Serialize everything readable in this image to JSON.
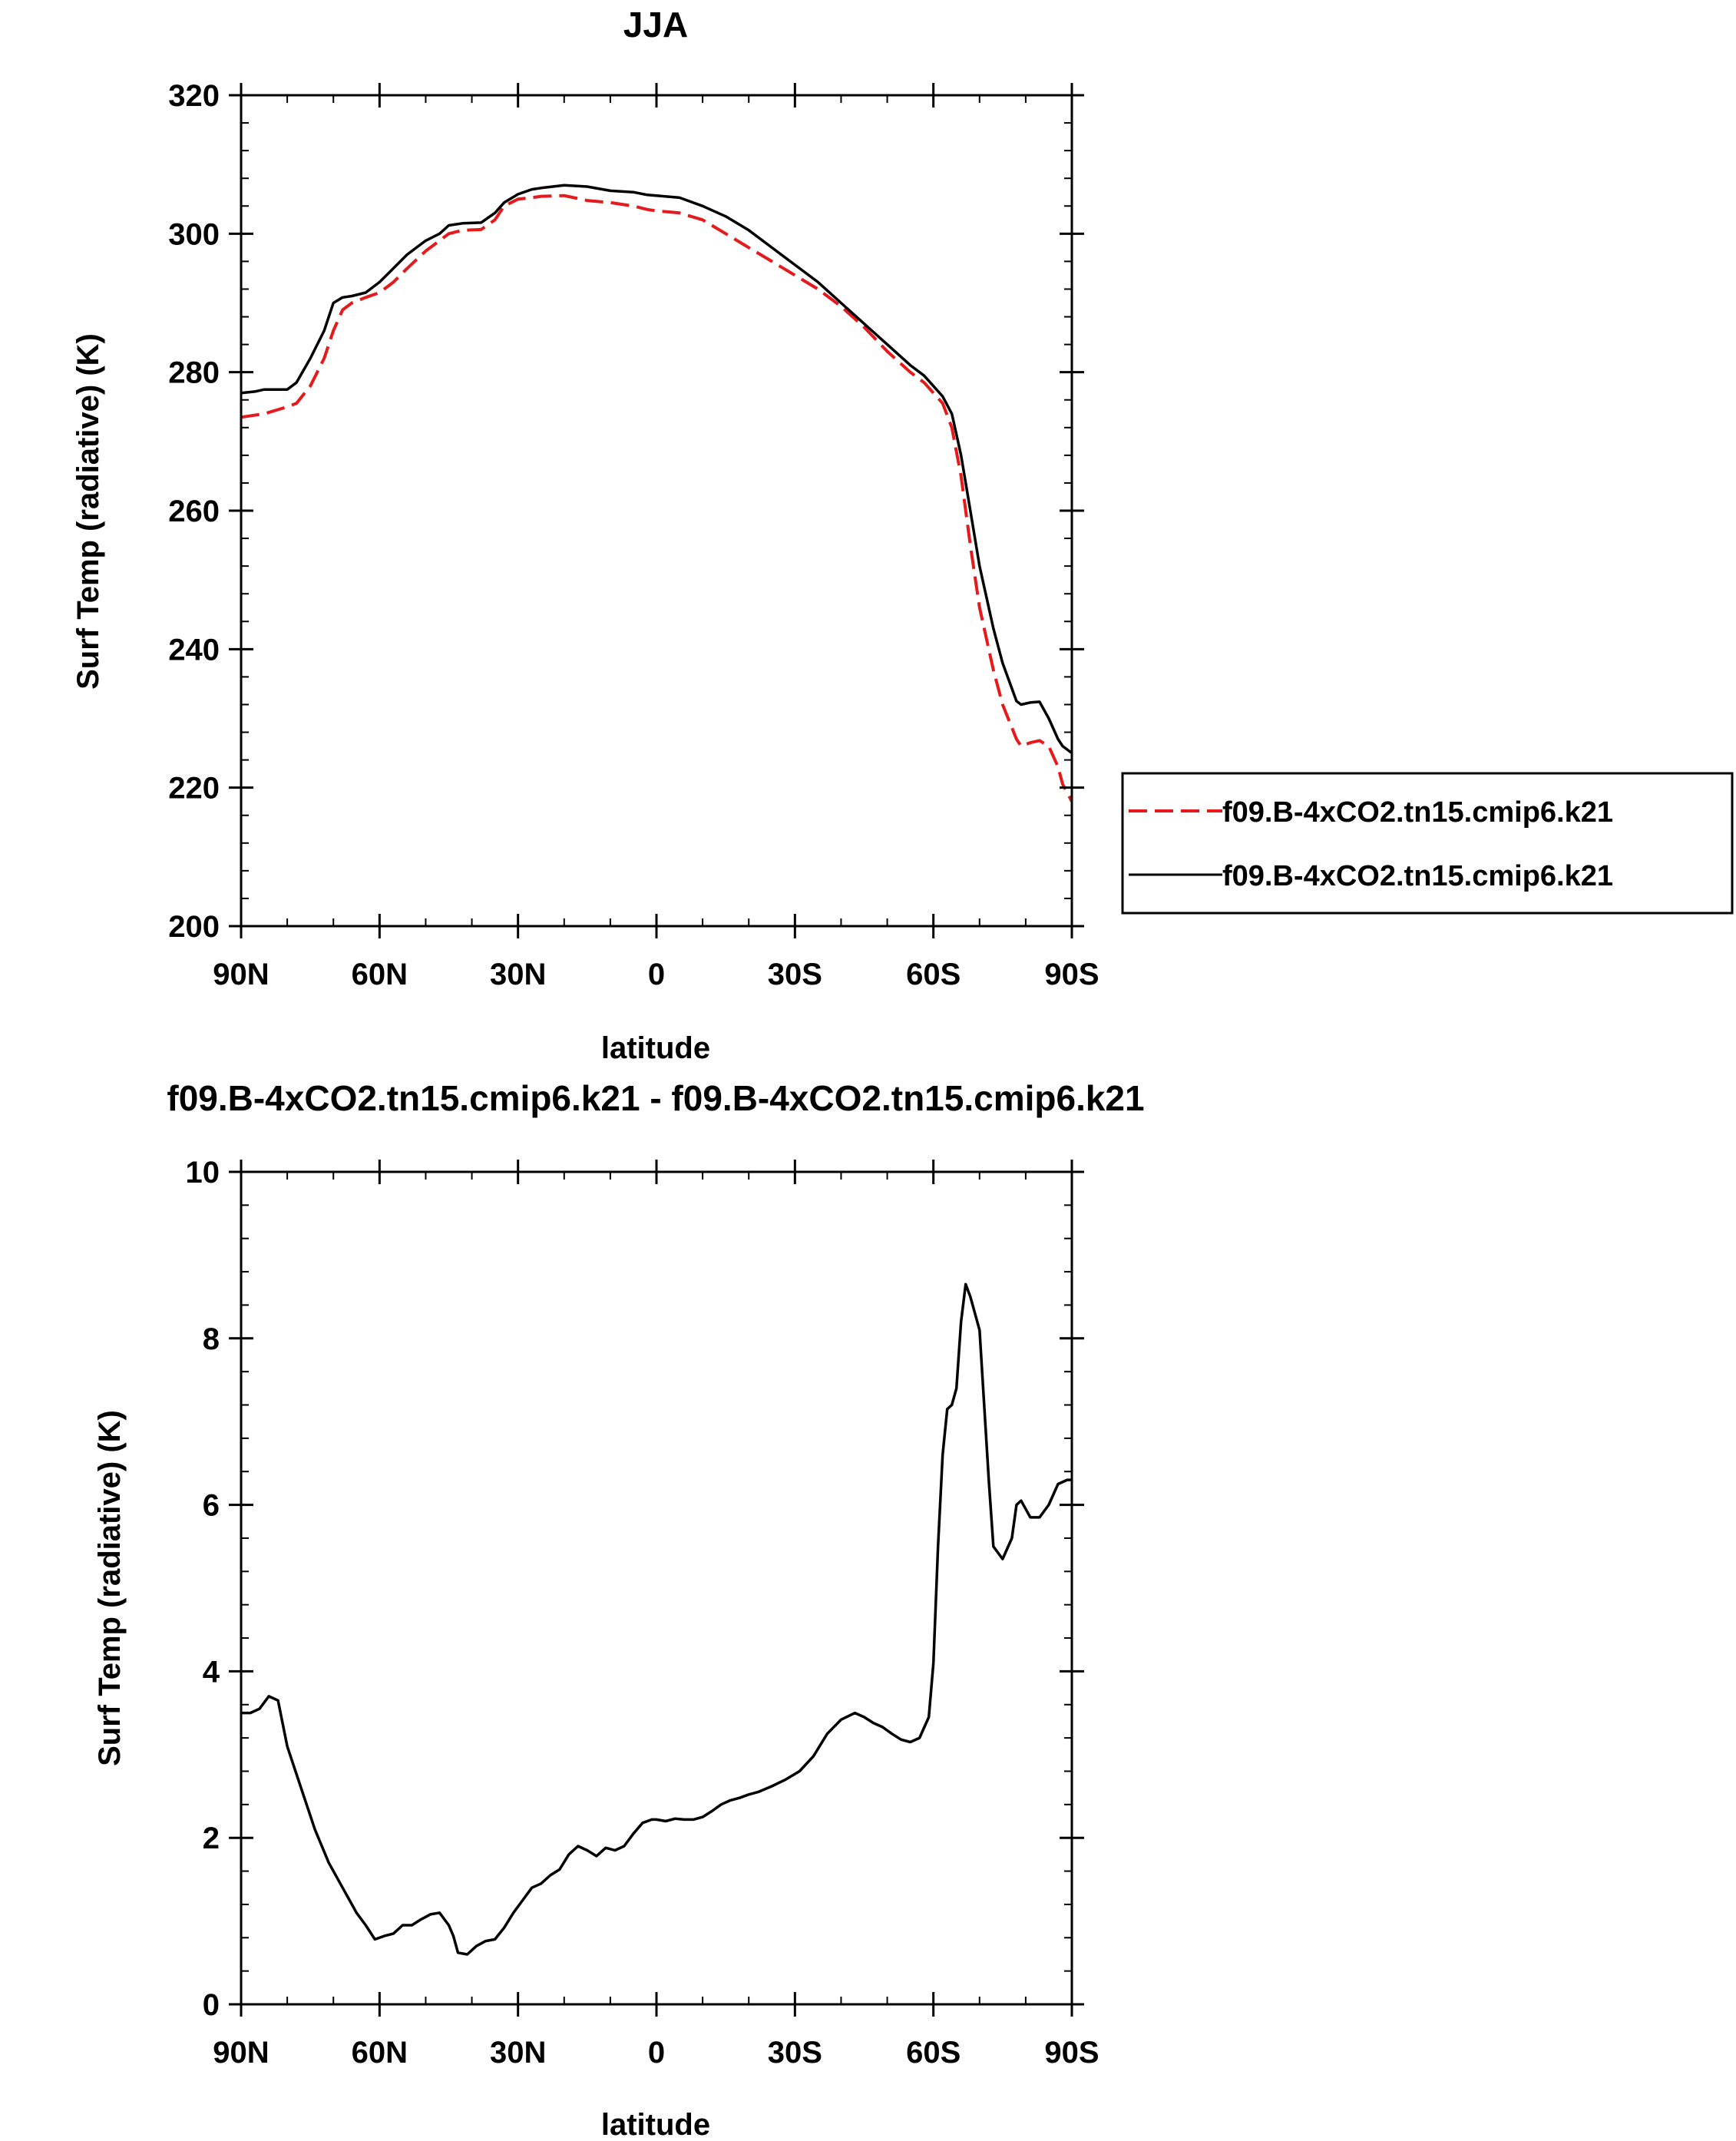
{
  "chart_data": [
    {
      "type": "line",
      "title": "JJA",
      "xlabel": "latitude",
      "ylabel": "Surf Temp (radiative) (K)",
      "xlim": [
        90,
        -90
      ],
      "ylim": [
        200,
        320
      ],
      "xticks": [
        90,
        60,
        30,
        0,
        -30,
        -60,
        -90
      ],
      "xtick_labels": [
        "90N",
        "60N",
        "30N",
        "0",
        "30S",
        "60S",
        "90S"
      ],
      "yticks": [
        200,
        220,
        240,
        260,
        280,
        300,
        320
      ],
      "ytick_labels": [
        "200",
        "220",
        "240",
        "260",
        "280",
        "300",
        "320"
      ],
      "legend_position": "right",
      "series": [
        {
          "name": "f09.B-4xCO2.tn15.cmip6.k21",
          "style": "dashed",
          "color": "#e41a1c",
          "x": [
            90,
            85,
            80,
            78,
            75,
            72,
            70,
            68,
            66,
            63,
            60,
            57,
            54,
            50,
            47,
            45,
            42,
            38,
            35,
            33,
            30,
            27,
            25,
            20,
            15,
            10,
            5,
            2,
            0,
            -5,
            -10,
            -15,
            -20,
            -25,
            -30,
            -35,
            -40,
            -45,
            -50,
            -55,
            -58,
            -60,
            -62,
            -64,
            -66,
            -68,
            -70,
            -73,
            -75,
            -78,
            -79,
            -81,
            -83,
            -85,
            -87,
            -88,
            -90
          ],
          "y": [
            273.5,
            274,
            275,
            275.5,
            278,
            282,
            286,
            289,
            290,
            290.8,
            291.5,
            293,
            295,
            297.5,
            299,
            300,
            300.5,
            300.6,
            302,
            304,
            305,
            305.2,
            305.4,
            305.5,
            304.8,
            304.5,
            304,
            303.5,
            303.3,
            303,
            302,
            300,
            298,
            296,
            294,
            292,
            289.5,
            286.5,
            283,
            280,
            278.5,
            277,
            275.5,
            272,
            265,
            255,
            246,
            237,
            232,
            227,
            226,
            226.5,
            226.8,
            226,
            223,
            220.5,
            218
          ]
        },
        {
          "name": "f09.B-4xCO2.tn15.cmip6.k21",
          "style": "solid",
          "color": "#000000",
          "x": [
            90,
            87,
            85,
            80,
            78,
            75,
            72,
            70,
            68,
            66,
            63,
            60,
            57,
            54,
            50,
            47,
            45,
            42,
            38,
            35,
            33,
            30,
            27,
            25,
            20,
            15,
            10,
            5,
            2,
            0,
            -5,
            -10,
            -15,
            -20,
            -25,
            -30,
            -35,
            -40,
            -45,
            -50,
            -55,
            -58,
            -60,
            -62,
            -64,
            -66,
            -68,
            -70,
            -73,
            -75,
            -78,
            -79,
            -81,
            -83,
            -85,
            -87,
            -88,
            -90
          ],
          "y": [
            277,
            277.2,
            277.5,
            277.5,
            278.5,
            282,
            286,
            290,
            290.8,
            291,
            291.5,
            293,
            295,
            297,
            299,
            300,
            301.2,
            301.5,
            301.6,
            303,
            304.5,
            305.7,
            306.4,
            306.6,
            307,
            306.8,
            306.2,
            306,
            305.6,
            305.5,
            305.2,
            304,
            302.5,
            300.5,
            298,
            295.5,
            293,
            290,
            287,
            284,
            281,
            279.5,
            278,
            276.5,
            274,
            268,
            260,
            252,
            243,
            238,
            232.5,
            232,
            232.3,
            232.4,
            230,
            227,
            226,
            225
          ]
        }
      ]
    },
    {
      "type": "line",
      "title": "f09.B-4xCO2.tn15.cmip6.k21 - f09.B-4xCO2.tn15.cmip6.k21",
      "xlabel": "latitude",
      "ylabel": "Surf Temp (radiative) (K)",
      "xlim": [
        90,
        -90
      ],
      "ylim": [
        0,
        10
      ],
      "xticks": [
        90,
        60,
        30,
        0,
        -30,
        -60,
        -90
      ],
      "xtick_labels": [
        "90N",
        "60N",
        "30N",
        "0",
        "30S",
        "60S",
        "90S"
      ],
      "yticks": [
        0,
        2,
        4,
        6,
        8,
        10
      ],
      "ytick_labels": [
        "0",
        "2",
        "4",
        "6",
        "8",
        "10"
      ],
      "series": [
        {
          "style": "solid",
          "color": "#000000",
          "x": [
            90,
            88,
            86,
            84,
            82,
            80,
            77,
            74,
            71,
            68,
            66,
            65,
            63,
            61,
            59,
            57,
            55,
            53,
            51,
            49,
            47,
            45,
            44,
            43,
            41,
            39,
            37,
            35,
            33,
            31,
            29,
            27,
            25,
            23,
            21,
            19,
            17,
            15,
            13,
            11,
            9,
            7,
            5,
            3,
            1,
            0,
            -2,
            -4,
            -6,
            -8,
            -10,
            -12,
            -14,
            -16,
            -18,
            -20,
            -22,
            -25,
            -28,
            -31,
            -34,
            -37,
            -40,
            -43,
            -45,
            -47,
            -49,
            -51,
            -53,
            -55,
            -57,
            -59,
            -60,
            -61,
            -62,
            -63,
            -64,
            -65,
            -66,
            -67,
            -68,
            -69,
            -70,
            -71,
            -72,
            -73,
            -75,
            -77,
            -78,
            -79,
            -81,
            -83,
            -85,
            -87,
            -89,
            -90
          ],
          "y": [
            3.5,
            3.5,
            3.55,
            3.7,
            3.65,
            3.1,
            2.6,
            2.1,
            1.7,
            1.4,
            1.2,
            1.1,
            0.95,
            0.78,
            0.82,
            0.85,
            0.95,
            0.95,
            1.02,
            1.08,
            1.1,
            0.95,
            0.82,
            0.62,
            0.6,
            0.7,
            0.76,
            0.78,
            0.92,
            1.1,
            1.25,
            1.4,
            1.45,
            1.55,
            1.62,
            1.8,
            1.9,
            1.85,
            1.78,
            1.88,
            1.85,
            1.9,
            2.05,
            2.18,
            2.22,
            2.22,
            2.2,
            2.23,
            2.22,
            2.22,
            2.25,
            2.32,
            2.4,
            2.45,
            2.48,
            2.52,
            2.55,
            2.62,
            2.7,
            2.8,
            2.98,
            3.25,
            3.42,
            3.5,
            3.45,
            3.38,
            3.33,
            3.25,
            3.18,
            3.15,
            3.2,
            3.45,
            4.1,
            5.5,
            6.6,
            7.15,
            7.2,
            7.4,
            8.2,
            8.65,
            8.5,
            8.3,
            8.1,
            7.2,
            6.3,
            5.5,
            5.35,
            5.6,
            6.0,
            6.05,
            5.85,
            5.85,
            6.0,
            6.25,
            6.3,
            6.3
          ]
        }
      ]
    }
  ]
}
